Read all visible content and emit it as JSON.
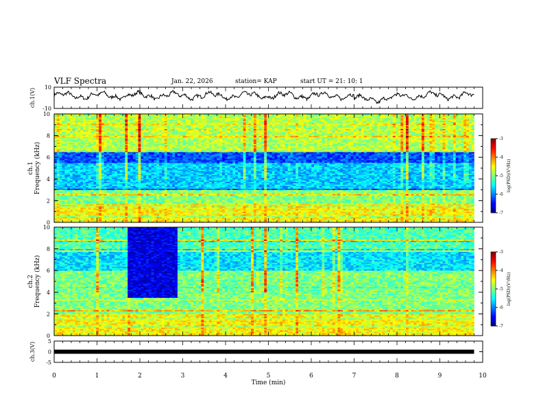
{
  "header": {
    "title": "VLF Spectra",
    "date": "Jan. 22, 2026",
    "station": "station= KAP",
    "start": "start  UT =   21: 10: 1"
  },
  "chart_data": [
    {
      "type": "line",
      "ylabel": "ch.1(V)",
      "ylim": [
        -10,
        10
      ],
      "xlim": [
        0,
        10
      ],
      "y_ticks": [
        "10",
        "-10"
      ],
      "series": [
        {
          "x_range_min": [
            0,
            9.8
          ],
          "level_V": 2,
          "fluctuation_V": 6
        }
      ]
    },
    {
      "type": "heatmap",
      "channel_label": "ch.1",
      "ylabel": "Frequency (kHz)",
      "ylim": [
        0,
        10
      ],
      "xlim": [
        0,
        10
      ],
      "y_ticks": [
        "0",
        "2",
        "4",
        "6",
        "8",
        "10"
      ],
      "colorbar": {
        "label": "log(PSD)(V²/Hz)",
        "range": [
          -7,
          -3
        ],
        "ticks": [
          "-3",
          "-4",
          "-5",
          "-6",
          "-7"
        ]
      },
      "bands_kHz": [
        {
          "f_low": 0,
          "f_high": 1.5,
          "log_psd": -4.5
        },
        {
          "f_low": 1.5,
          "f_high": 3,
          "log_psd": -5
        },
        {
          "f_low": 3,
          "f_high": 5.5,
          "log_psd": -5.7
        },
        {
          "f_low": 5.5,
          "f_high": 6.5,
          "log_psd": -6.2
        },
        {
          "f_low": 6.5,
          "f_high": 10,
          "log_psd": -4.8
        }
      ]
    },
    {
      "type": "heatmap",
      "channel_label": "ch.2",
      "ylabel": "Frequency (kHz)",
      "ylim": [
        0,
        10
      ],
      "xlim": [
        0,
        10
      ],
      "y_ticks": [
        "0",
        "2",
        "4",
        "6",
        "8",
        "10"
      ],
      "colorbar": {
        "label": "log(PSD)(V²/Hz)",
        "range": [
          -7,
          -3
        ],
        "ticks": [
          "-3",
          "-4",
          "-5",
          "-6",
          "-7"
        ]
      },
      "bands_kHz": [
        {
          "f_low": 0,
          "f_high": 2,
          "log_psd": -4.5
        },
        {
          "f_low": 2,
          "f_high": 6,
          "log_psd": -5
        },
        {
          "f_low": 6,
          "f_high": 8,
          "log_psd": -5.6
        },
        {
          "f_low": 8,
          "f_high": 10,
          "log_psd": -5.2
        }
      ],
      "low_region": {
        "t_start": 1.7,
        "t_end": 2.9,
        "f_low": 3.5,
        "f_high": 10,
        "log_psd": -6.6
      }
    },
    {
      "type": "line",
      "ylabel": "ch.3(V)",
      "ylim": [
        -5,
        5
      ],
      "xlim": [
        0,
        10
      ],
      "y_ticks": [
        "5",
        "0",
        "-5"
      ],
      "series": [
        {
          "x_range_min": [
            0,
            9.8
          ],
          "level_V": 0
        }
      ]
    }
  ],
  "xaxis": {
    "label": "Time (min)",
    "ticks": [
      "0",
      "1",
      "2",
      "3",
      "4",
      "5",
      "6",
      "7",
      "8",
      "9",
      "10"
    ]
  },
  "colors": {
    "frame": "#000000",
    "background": "#ffffff"
  }
}
